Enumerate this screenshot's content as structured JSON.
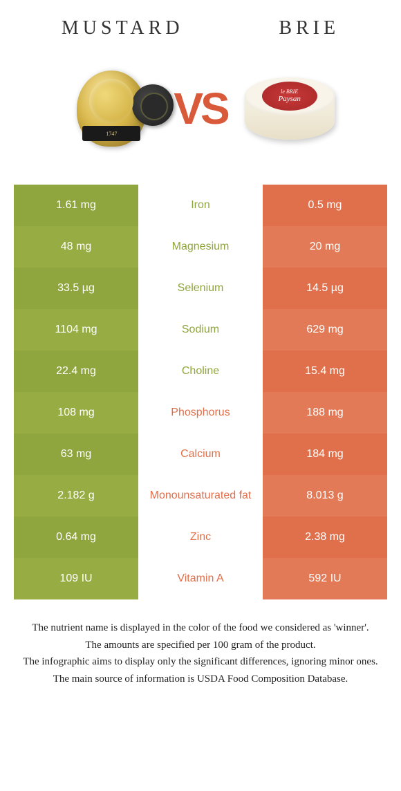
{
  "colors": {
    "mustard": "#8fa53e",
    "mustard_alt": "#97ad44",
    "brie": "#e0704c",
    "brie_alt": "#e37a57",
    "white": "#ffffff"
  },
  "header": {
    "left": "Mustard",
    "right": "Brie",
    "vs": "VS"
  },
  "brie_label": {
    "line1": "le BRIE",
    "line2": "Paysan"
  },
  "mustard_band": "1747",
  "rows": [
    {
      "left": "1.61 mg",
      "label": "Iron",
      "right": "0.5 mg",
      "winner": "left"
    },
    {
      "left": "48 mg",
      "label": "Magnesium",
      "right": "20 mg",
      "winner": "left"
    },
    {
      "left": "33.5 µg",
      "label": "Selenium",
      "right": "14.5 µg",
      "winner": "left"
    },
    {
      "left": "1104 mg",
      "label": "Sodium",
      "right": "629 mg",
      "winner": "left"
    },
    {
      "left": "22.4 mg",
      "label": "Choline",
      "right": "15.4 mg",
      "winner": "left"
    },
    {
      "left": "108 mg",
      "label": "Phosphorus",
      "right": "188 mg",
      "winner": "right"
    },
    {
      "left": "63 mg",
      "label": "Calcium",
      "right": "184 mg",
      "winner": "right"
    },
    {
      "left": "2.182 g",
      "label": "Monounsaturated fat",
      "right": "8.013 g",
      "winner": "right"
    },
    {
      "left": "0.64 mg",
      "label": "Zinc",
      "right": "2.38 mg",
      "winner": "right"
    },
    {
      "left": "109 IU",
      "label": "Vitamin A",
      "right": "592 IU",
      "winner": "right"
    }
  ],
  "footnotes": [
    "The nutrient name is displayed in the color of the food we considered as 'winner'.",
    "The amounts are specified per 100 gram of the product.",
    "The infographic aims to display only the significant differences, ignoring minor ones.",
    "The main source of information is USDA Food Composition Database."
  ]
}
